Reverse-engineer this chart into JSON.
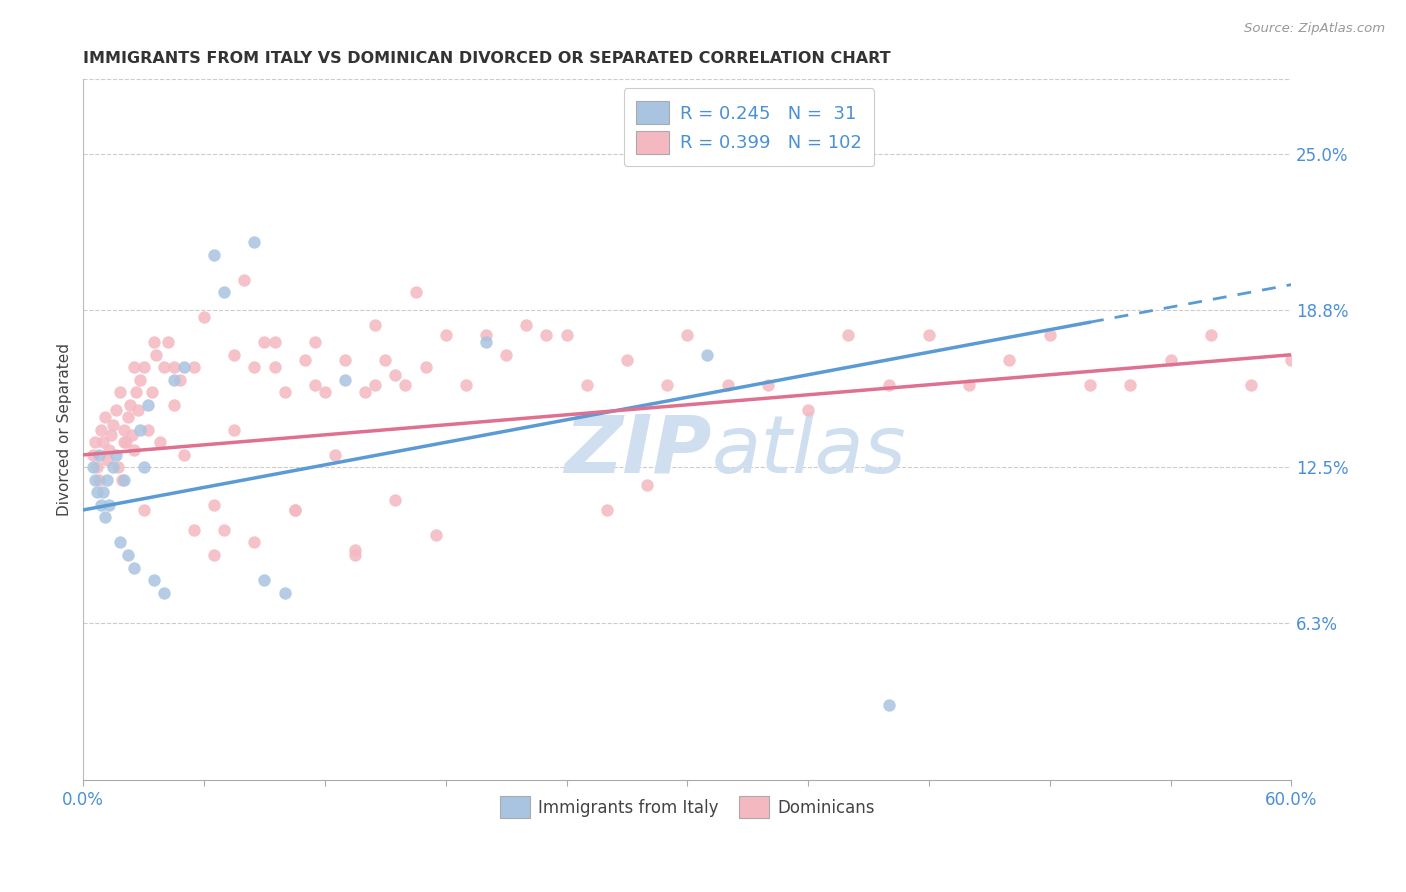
{
  "title": "IMMIGRANTS FROM ITALY VS DOMINICAN DIVORCED OR SEPARATED CORRELATION CHART",
  "source": "Source: ZipAtlas.com",
  "ylabel": "Divorced or Separated",
  "right_yticks": [
    "25.0%",
    "18.8%",
    "12.5%",
    "6.3%"
  ],
  "right_ytick_vals": [
    0.25,
    0.188,
    0.125,
    0.063
  ],
  "legend_italy": "Immigrants from Italy",
  "legend_dominicans": "Dominicans",
  "legend_line1": "R = 0.245   N =  31",
  "legend_line2": "R = 0.399   N = 102",
  "color_italy": "#a8c4e0",
  "color_dominicans": "#f4b8c1",
  "color_italy_line": "#5b9bd5",
  "color_dominicans_line": "#e07090",
  "color_text_blue": "#4a90d9",
  "watermark_color": "#d0dff0",
  "background_color": "#ffffff",
  "grid_color": "#cccccc",
  "xlim": [
    0.0,
    0.6
  ],
  "ylim": [
    0.0,
    0.28
  ],
  "italy_line_x0": 0.0,
  "italy_line_y0": 0.108,
  "italy_line_x1": 0.5,
  "italy_line_y1": 0.183,
  "italy_line_dash_x1": 0.6,
  "italy_line_dash_y1": 0.198,
  "dom_line_x0": 0.0,
  "dom_line_y0": 0.13,
  "dom_line_x1": 0.6,
  "dom_line_y1": 0.17,
  "italy_x": [
    0.005,
    0.006,
    0.007,
    0.008,
    0.009,
    0.01,
    0.011,
    0.012,
    0.013,
    0.015,
    0.016,
    0.018,
    0.02,
    0.022,
    0.025,
    0.028,
    0.03,
    0.032,
    0.035,
    0.04,
    0.045,
    0.05,
    0.065,
    0.07,
    0.085,
    0.09,
    0.1,
    0.13,
    0.2,
    0.31,
    0.4
  ],
  "italy_y": [
    0.125,
    0.12,
    0.115,
    0.13,
    0.11,
    0.115,
    0.105,
    0.12,
    0.11,
    0.125,
    0.13,
    0.095,
    0.12,
    0.09,
    0.085,
    0.14,
    0.125,
    0.15,
    0.08,
    0.075,
    0.16,
    0.165,
    0.21,
    0.195,
    0.215,
    0.08,
    0.075,
    0.16,
    0.175,
    0.17,
    0.03
  ],
  "dom_x": [
    0.005,
    0.006,
    0.007,
    0.008,
    0.009,
    0.01,
    0.011,
    0.012,
    0.013,
    0.014,
    0.015,
    0.016,
    0.017,
    0.018,
    0.019,
    0.02,
    0.021,
    0.022,
    0.023,
    0.024,
    0.025,
    0.026,
    0.027,
    0.028,
    0.03,
    0.032,
    0.034,
    0.036,
    0.038,
    0.04,
    0.042,
    0.045,
    0.048,
    0.05,
    0.055,
    0.06,
    0.065,
    0.07,
    0.075,
    0.08,
    0.085,
    0.09,
    0.095,
    0.1,
    0.105,
    0.11,
    0.115,
    0.12,
    0.13,
    0.135,
    0.14,
    0.145,
    0.15,
    0.155,
    0.16,
    0.165,
    0.17,
    0.175,
    0.18,
    0.19,
    0.2,
    0.21,
    0.22,
    0.23,
    0.24,
    0.25,
    0.26,
    0.27,
    0.28,
    0.29,
    0.3,
    0.32,
    0.34,
    0.36,
    0.38,
    0.4,
    0.42,
    0.44,
    0.46,
    0.48,
    0.5,
    0.52,
    0.54,
    0.56,
    0.58,
    0.6,
    0.02,
    0.03,
    0.025,
    0.035,
    0.045,
    0.055,
    0.065,
    0.075,
    0.085,
    0.095,
    0.105,
    0.115,
    0.125,
    0.135,
    0.145,
    0.155
  ],
  "dom_y": [
    0.13,
    0.135,
    0.125,
    0.12,
    0.14,
    0.135,
    0.145,
    0.128,
    0.132,
    0.138,
    0.142,
    0.148,
    0.125,
    0.155,
    0.12,
    0.14,
    0.135,
    0.145,
    0.15,
    0.138,
    0.132,
    0.155,
    0.148,
    0.16,
    0.165,
    0.14,
    0.155,
    0.17,
    0.135,
    0.165,
    0.175,
    0.15,
    0.16,
    0.13,
    0.165,
    0.185,
    0.11,
    0.1,
    0.14,
    0.2,
    0.165,
    0.175,
    0.165,
    0.155,
    0.108,
    0.168,
    0.175,
    0.155,
    0.168,
    0.09,
    0.155,
    0.182,
    0.168,
    0.112,
    0.158,
    0.195,
    0.165,
    0.098,
    0.178,
    0.158,
    0.178,
    0.17,
    0.182,
    0.178,
    0.178,
    0.158,
    0.108,
    0.168,
    0.118,
    0.158,
    0.178,
    0.158,
    0.158,
    0.148,
    0.178,
    0.158,
    0.178,
    0.158,
    0.168,
    0.178,
    0.158,
    0.158,
    0.168,
    0.178,
    0.158,
    0.168,
    0.135,
    0.108,
    0.165,
    0.175,
    0.165,
    0.1,
    0.09,
    0.17,
    0.095,
    0.175,
    0.108,
    0.158,
    0.13,
    0.092,
    0.158,
    0.162
  ]
}
